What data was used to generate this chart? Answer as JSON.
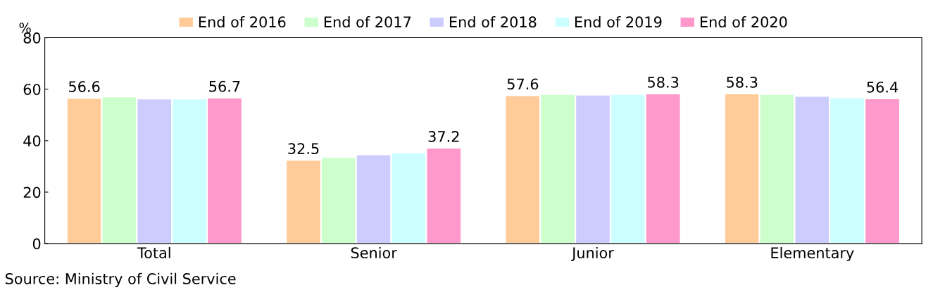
{
  "chart_data": {
    "type": "bar",
    "ylabel": "%",
    "categories": [
      "Total",
      "Senior",
      "Junior",
      "Elementary"
    ],
    "series": [
      {
        "name": "End of 2016",
        "color": "#ffcc99",
        "values": [
          56.6,
          32.5,
          57.6,
          58.3
        ],
        "value_labels": [
          "56.6",
          "32.5",
          "57.6",
          "58.3"
        ]
      },
      {
        "name": "End of 2017",
        "color": "#ccffcc",
        "values": [
          57.1,
          33.6,
          58.1,
          58.1
        ]
      },
      {
        "name": "End of 2018",
        "color": "#ccccff",
        "values": [
          56.3,
          34.6,
          57.8,
          57.3
        ]
      },
      {
        "name": "End of 2019",
        "color": "#ccffff",
        "values": [
          56.3,
          35.4,
          58.1,
          56.8
        ]
      },
      {
        "name": "End of 2020",
        "color": "#ff99cc",
        "values": [
          56.7,
          37.2,
          58.3,
          56.4
        ],
        "value_labels": [
          "56.7",
          "37.2",
          "58.3",
          "56.4"
        ]
      }
    ],
    "ylim": [
      0,
      80
    ],
    "yticks": [
      0,
      20,
      40,
      60,
      80
    ],
    "grid": false,
    "legend": "top",
    "annotations": [
      "Source: Ministry of Civil Service"
    ]
  }
}
